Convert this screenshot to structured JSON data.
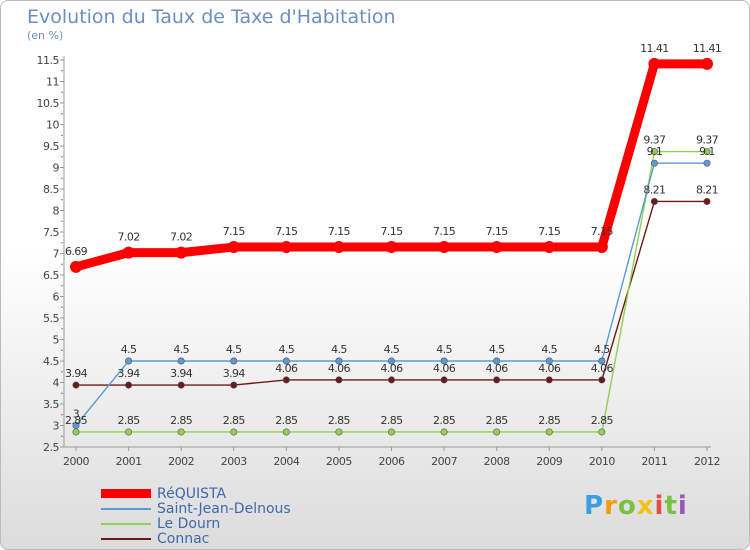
{
  "chart_data": {
    "type": "line",
    "title": "Evolution du Taux de Taxe d'Habitation",
    "unit": "(en %)",
    "x": [
      "2000",
      "2001",
      "2002",
      "2003",
      "2004",
      "2005",
      "2006",
      "2007",
      "2008",
      "2009",
      "2010",
      "2011",
      "2012"
    ],
    "ylim": [
      2.5,
      11.5
    ],
    "yticks": [
      "2.5",
      "3",
      "3.5",
      "4",
      "4.5",
      "5",
      "5.5",
      "6",
      "6.5",
      "7",
      "7.5",
      "8",
      "8.5",
      "9",
      "9.5",
      "10",
      "10.5",
      "11",
      "11.5"
    ],
    "grid": false,
    "legend_position": "bottom-left",
    "series": [
      {
        "name": "RéQUISTA",
        "color": "#ff0000",
        "values": [
          6.69,
          7.02,
          7.02,
          7.15,
          7.15,
          7.15,
          7.15,
          7.15,
          7.15,
          7.15,
          7.15,
          11.41,
          11.41
        ],
        "labels": [
          "6.69",
          "7.02",
          "7.02",
          "7.15",
          "7.15",
          "7.15",
          "7.15",
          "7.15",
          "7.15",
          "7.15",
          "7.15",
          "11.41",
          "11.41"
        ]
      },
      {
        "name": "Saint-Jean-Delnous",
        "color": "#5b9bd5",
        "values": [
          3,
          4.5,
          4.5,
          4.5,
          4.5,
          4.5,
          4.5,
          4.5,
          4.5,
          4.5,
          4.5,
          9.1,
          9.1
        ],
        "labels": [
          "3",
          "4.5",
          "4.5",
          "4.5",
          "4.5",
          "4.5",
          "4.5",
          "4.5",
          "4.5",
          "4.5",
          "4.5",
          "9.1",
          "9.1"
        ]
      },
      {
        "name": "Le Dourn",
        "color": "#92d050",
        "values": [
          2.85,
          2.85,
          2.85,
          2.85,
          2.85,
          2.85,
          2.85,
          2.85,
          2.85,
          2.85,
          2.85,
          9.37,
          9.37
        ],
        "labels": [
          "2.85",
          "2.85",
          "2.85",
          "2.85",
          "2.85",
          "2.85",
          "2.85",
          "2.85",
          "2.85",
          "2.85",
          "2.85",
          "9.37",
          "9.37"
        ]
      },
      {
        "name": "Connac",
        "color": "#6b1a1a",
        "values": [
          3.94,
          3.94,
          3.94,
          3.94,
          4.06,
          4.06,
          4.06,
          4.06,
          4.06,
          4.06,
          4.06,
          8.21,
          8.21
        ],
        "labels": [
          "3.94",
          "3.94",
          "3.94",
          "3.94",
          "4.06",
          "4.06",
          "4.06",
          "4.06",
          "4.06",
          "4.06",
          "4.06",
          "8.21",
          "8.21"
        ]
      }
    ]
  },
  "logo": {
    "letters": [
      "P",
      "r",
      "o",
      "x",
      "i",
      "t",
      "i"
    ],
    "colors": [
      "#3a9ee0",
      "#f39c12",
      "#7ac143",
      "#f1c40f",
      "#e74c3c",
      "#7ac143",
      "#9b59b6"
    ]
  }
}
